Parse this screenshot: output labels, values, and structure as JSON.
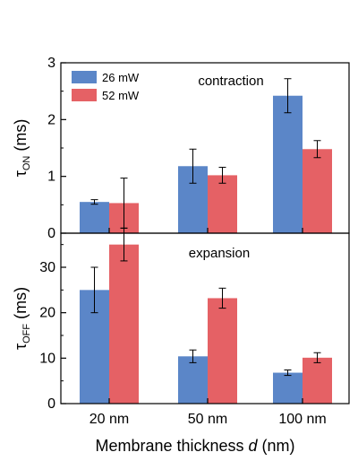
{
  "colors": {
    "series_26": "#5b86c8",
    "series_52": "#e56165",
    "axis": "#000000"
  },
  "chart_data": [
    {
      "type": "bar",
      "categories": [
        "20 nm",
        "50 nm",
        "100 nm"
      ],
      "series": [
        {
          "name": "26 mW",
          "values": [
            0.55,
            1.18,
            2.42
          ],
          "errors": [
            0.04,
            0.3,
            0.3
          ]
        },
        {
          "name": "52 mW",
          "values": [
            0.53,
            1.02,
            1.48
          ],
          "errors": [
            0.44,
            0.14,
            0.15
          ]
        }
      ],
      "ylim": [
        0,
        3
      ],
      "yticks": [
        "0",
        "1",
        "2",
        "3"
      ],
      "ylabel_symbol": "τ",
      "ylabel_sub": "ON",
      "ylabel_unit": " (ms)",
      "annotation": "contraction",
      "legend": "top-left"
    },
    {
      "type": "bar",
      "categories": [
        "20 nm",
        "50 nm",
        "100 nm"
      ],
      "series": [
        {
          "name": "26 mW",
          "values": [
            25.0,
            10.4,
            6.8
          ],
          "errors": [
            5.0,
            1.4,
            0.6
          ]
        },
        {
          "name": "52 mW",
          "values": [
            35.0,
            23.2,
            10.1
          ],
          "errors": [
            3.6,
            2.2,
            1.1
          ]
        }
      ],
      "ylim": [
        0,
        37.5
      ],
      "yticks": [
        "0",
        "10",
        "20",
        "30"
      ],
      "ylabel_symbol": "τ",
      "ylabel_sub": "OFF",
      "ylabel_unit": " (ms)",
      "annotation": "expansion"
    }
  ],
  "xlabel_main": "Membrane thickness ",
  "xlabel_var": "d",
  "xlabel_unit": " (nm)"
}
